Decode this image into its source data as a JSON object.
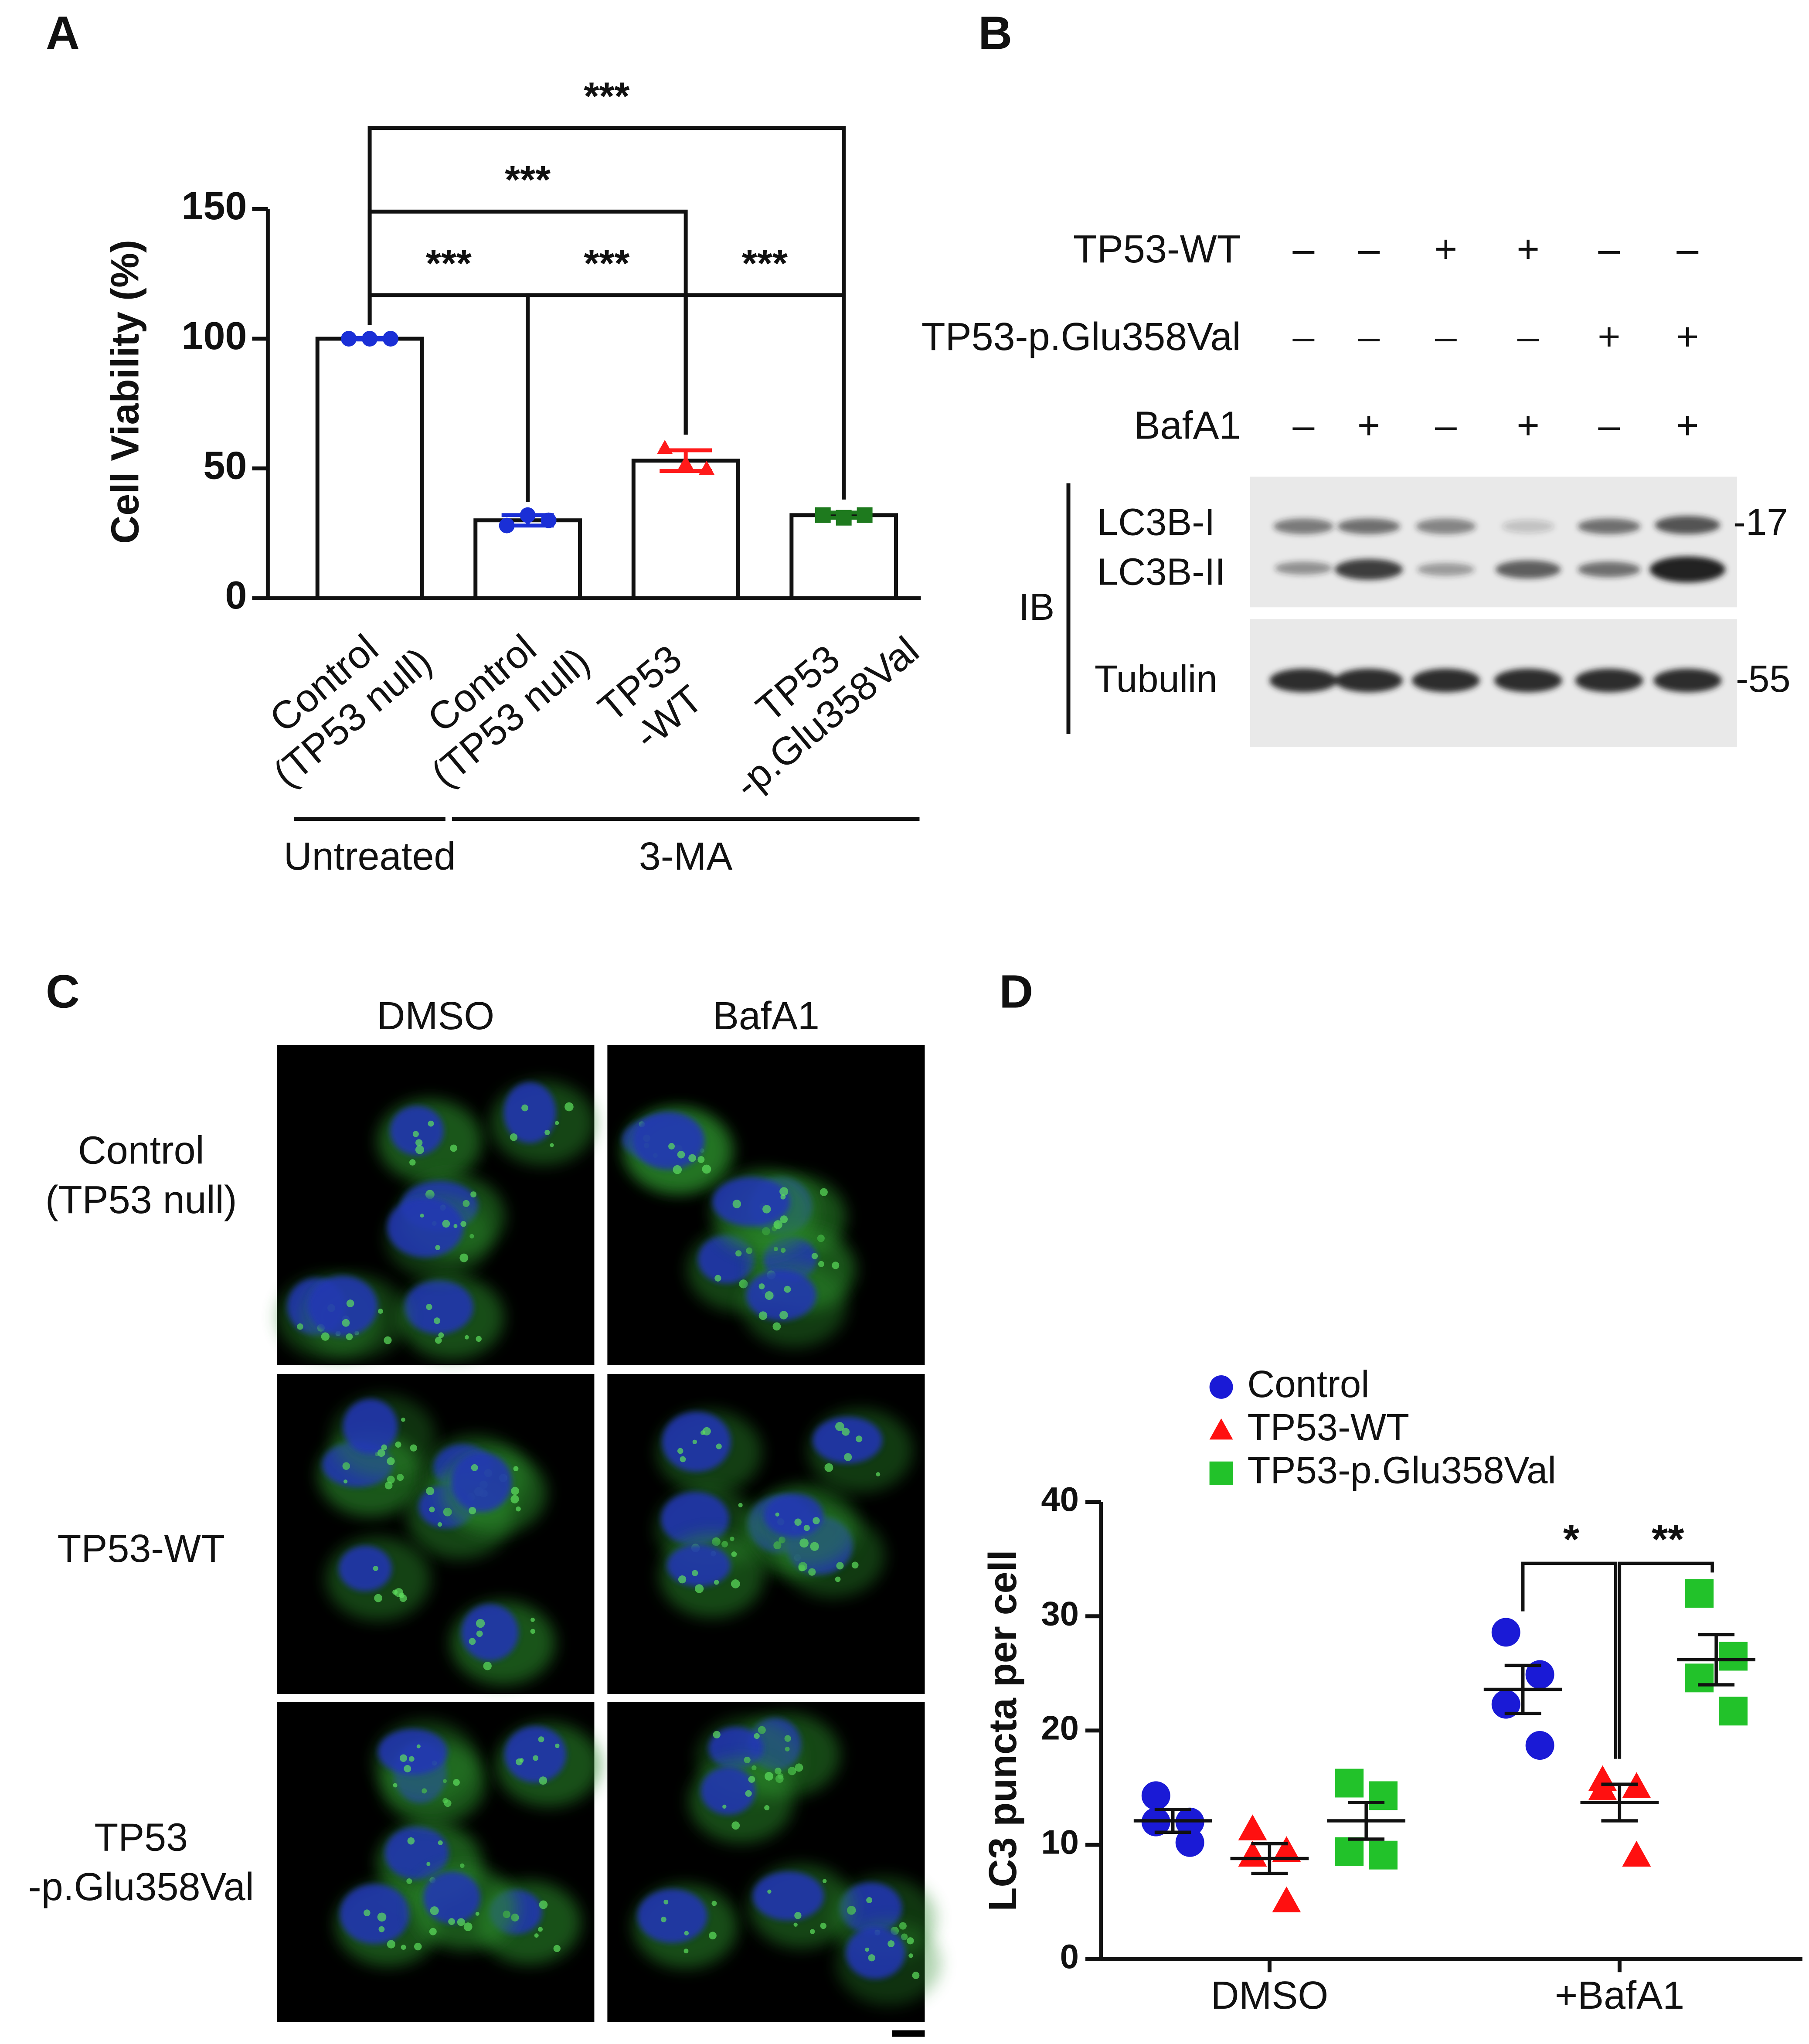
{
  "panel_labels": [
    "A",
    "B",
    "C",
    "D"
  ],
  "blot": {
    "conditions": [
      {
        "label": "TP53-WT",
        "signs": [
          "–",
          "–",
          "+",
          "+",
          "–",
          "–"
        ]
      },
      {
        "label": "TP53-p.Glu358Val",
        "signs": [
          "–",
          "–",
          "–",
          "–",
          "+",
          "+"
        ]
      },
      {
        "label": "BafA1",
        "signs": [
          "–",
          "+",
          "–",
          "+",
          "–",
          "+"
        ]
      }
    ],
    "bands": [
      "LC3B-I",
      "LC3B-II",
      "Tubulin"
    ],
    "ib": "IB",
    "markers": [
      "-17",
      "-55"
    ]
  },
  "microscopy": {
    "columns": [
      "DMSO",
      "BafA1"
    ],
    "rows": [
      [
        "Control",
        "(TP53 null)"
      ],
      [
        "TP53-WT"
      ],
      [
        "TP53",
        "-p.Glu358Val"
      ]
    ]
  },
  "chart_data": [
    {
      "type": "bar",
      "y_label": "Cell Viability (%)",
      "categories": [
        [
          "Control",
          "(TP53 null)"
        ],
        [
          "Control",
          "(TP53 null)"
        ],
        [
          "TP53",
          "-WT"
        ],
        [
          "TP53",
          "-p.Glu358Val"
        ]
      ],
      "values": [
        100,
        30,
        53,
        32
      ],
      "errors": [
        0.3,
        2,
        4,
        1
      ],
      "points": [
        [
          100,
          100,
          100
        ],
        [
          28,
          32,
          30
        ],
        [
          58,
          52,
          50
        ],
        [
          32,
          31,
          32
        ]
      ],
      "point_colors": [
        "#1a2fd6",
        "#1a2fd6",
        "#ff1a1a",
        "#1e7a1e"
      ],
      "point_markers": [
        "circle",
        "circle",
        "triangle",
        "square"
      ],
      "color": "#ffffff",
      "ylim": [
        0,
        150
      ],
      "yticks": [
        0,
        50,
        100,
        150
      ],
      "significance": [
        {
          "pair": [
            0,
            3
          ],
          "label": "***"
        },
        {
          "pair": [
            0,
            2
          ],
          "label": "***"
        },
        {
          "pair": [
            0,
            1
          ],
          "label": "***"
        },
        {
          "pair": [
            1,
            2
          ],
          "label": "***"
        },
        {
          "pair": [
            2,
            3
          ],
          "label": "***"
        }
      ],
      "groups": [
        {
          "label": "Untreated",
          "span": [
            0,
            0
          ]
        },
        {
          "label": "3-MA",
          "span": [
            1,
            3
          ]
        }
      ]
    },
    {
      "type": "scatter",
      "y_label": "LC3 puncta per cell",
      "categories": [
        "DMSO",
        "+BafA1"
      ],
      "series": [
        {
          "name": "Control",
          "color": "#1a1ad6",
          "marker": "circle",
          "points": [
            [
              14.3,
              12.0,
              12.0,
              10.2
            ],
            [
              28.6,
              24.9,
              22.3,
              18.7
            ]
          ],
          "means": [
            12.1,
            23.6
          ],
          "errors": [
            1.0,
            2.1
          ]
        },
        {
          "name": "TP53-WT",
          "color": "#ff1010",
          "marker": "triangle",
          "points": [
            [
              11.4,
              9.5,
              9.1,
              5.1
            ],
            [
              15.7,
              15.1,
              14.9,
              9.1
            ]
          ],
          "means": [
            8.8,
            13.7
          ],
          "errors": [
            1.3,
            1.6
          ]
        },
        {
          "name": "TP53-p.Glu358Val",
          "color": "#22c22a",
          "marker": "square",
          "points": [
            [
              15.4,
              14.3,
              9.4,
              9.1
            ],
            [
              32.0,
              26.5,
              24.6,
              21.7
            ]
          ],
          "means": [
            12.1,
            26.2
          ],
          "errors": [
            1.6,
            2.2
          ]
        }
      ],
      "ylim": [
        0,
        40
      ],
      "yticks": [
        0,
        10,
        20,
        30,
        40
      ],
      "significance": [
        {
          "category": 1,
          "pair": [
            0,
            1
          ],
          "label": "*"
        },
        {
          "category": 1,
          "pair": [
            1,
            2
          ],
          "label": "**"
        }
      ]
    }
  ]
}
